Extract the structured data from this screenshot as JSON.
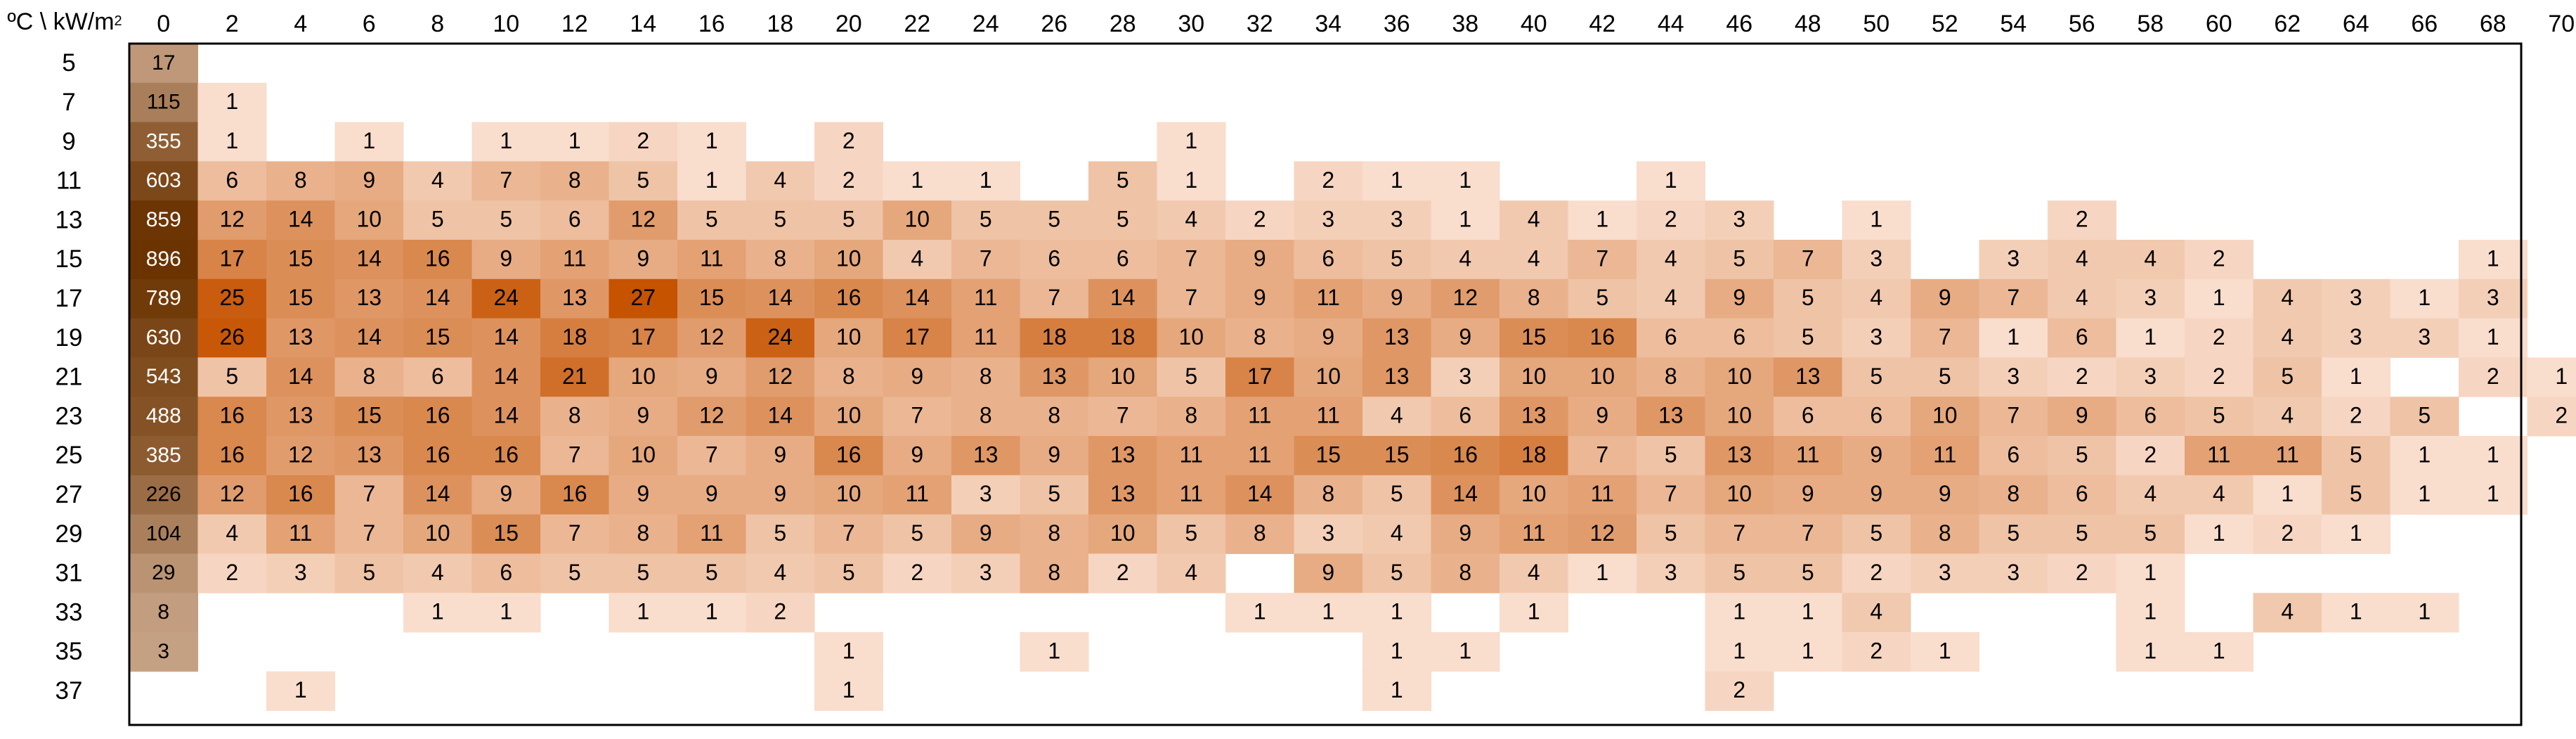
{
  "corner_label": {
    "prefix": "ºC \\ kW/m",
    "sup": "2"
  },
  "colors": {
    "low": "#FCE6DA",
    "high": "#C65300",
    "baseline_low": "#CBA88C",
    "baseline_high": "#6B3300"
  },
  "chart_data": {
    "type": "heatmap",
    "title": "",
    "xlabel": "kW/m2",
    "ylabel": "ºC",
    "x": [
      0,
      2,
      4,
      6,
      8,
      10,
      12,
      14,
      16,
      18,
      20,
      22,
      24,
      26,
      28,
      30,
      32,
      34,
      36,
      38,
      40,
      42,
      44,
      46,
      48,
      50,
      52,
      54,
      56,
      58,
      60,
      62,
      64,
      66,
      68,
      70
    ],
    "y": [
      5,
      7,
      9,
      11,
      13,
      15,
      17,
      19,
      21,
      23,
      25,
      27,
      29,
      31,
      33,
      35,
      37
    ],
    "values": [
      [
        17,
        null,
        null,
        null,
        null,
        null,
        null,
        null,
        null,
        null,
        null,
        null,
        null,
        null,
        null,
        null,
        null,
        null,
        null,
        null,
        null,
        null,
        null,
        null,
        null,
        null,
        null,
        null,
        null,
        null,
        null,
        null,
        null,
        null,
        null,
        null
      ],
      [
        115,
        1,
        null,
        null,
        null,
        null,
        null,
        null,
        null,
        null,
        null,
        null,
        null,
        null,
        null,
        null,
        null,
        null,
        null,
        null,
        null,
        null,
        null,
        null,
        null,
        null,
        null,
        null,
        null,
        null,
        null,
        null,
        null,
        null,
        null,
        null
      ],
      [
        355,
        1,
        null,
        1,
        null,
        1,
        1,
        2,
        1,
        null,
        2,
        null,
        null,
        null,
        null,
        1,
        null,
        null,
        null,
        null,
        null,
        null,
        null,
        null,
        null,
        null,
        null,
        null,
        null,
        null,
        null,
        null,
        null,
        null,
        null,
        null
      ],
      [
        603,
        6,
        8,
        9,
        4,
        7,
        8,
        5,
        1,
        4,
        2,
        1,
        1,
        null,
        5,
        1,
        null,
        2,
        1,
        1,
        null,
        null,
        1,
        null,
        null,
        null,
        null,
        null,
        null,
        null,
        null,
        null,
        null,
        null,
        null,
        null
      ],
      [
        859,
        12,
        14,
        10,
        5,
        5,
        6,
        12,
        5,
        5,
        5,
        10,
        5,
        5,
        5,
        4,
        2,
        3,
        3,
        1,
        4,
        1,
        2,
        3,
        null,
        1,
        null,
        null,
        2,
        null,
        null,
        null,
        null,
        null,
        null,
        null
      ],
      [
        896,
        17,
        15,
        14,
        16,
        9,
        11,
        9,
        11,
        8,
        10,
        4,
        7,
        6,
        6,
        7,
        9,
        6,
        5,
        4,
        4,
        7,
        4,
        5,
        7,
        3,
        null,
        3,
        4,
        4,
        2,
        null,
        null,
        null,
        1,
        null
      ],
      [
        789,
        25,
        15,
        13,
        14,
        24,
        13,
        27,
        15,
        14,
        16,
        14,
        11,
        7,
        14,
        7,
        9,
        11,
        9,
        12,
        8,
        5,
        4,
        9,
        5,
        4,
        9,
        7,
        4,
        3,
        1,
        4,
        3,
        1,
        3,
        null
      ],
      [
        630,
        26,
        13,
        14,
        15,
        14,
        18,
        17,
        12,
        24,
        10,
        17,
        11,
        18,
        18,
        10,
        8,
        9,
        13,
        9,
        15,
        16,
        6,
        6,
        5,
        3,
        7,
        1,
        6,
        1,
        2,
        4,
        3,
        3,
        1,
        null
      ],
      [
        543,
        5,
        14,
        8,
        6,
        14,
        21,
        10,
        9,
        12,
        8,
        9,
        8,
        13,
        10,
        5,
        17,
        10,
        13,
        3,
        10,
        10,
        8,
        10,
        13,
        5,
        5,
        3,
        2,
        3,
        2,
        5,
        1,
        null,
        2,
        1
      ],
      [
        488,
        16,
        13,
        15,
        16,
        14,
        8,
        9,
        12,
        14,
        10,
        7,
        8,
        8,
        7,
        8,
        11,
        11,
        4,
        6,
        13,
        9,
        13,
        10,
        6,
        6,
        10,
        7,
        9,
        6,
        5,
        4,
        2,
        5,
        null,
        2
      ],
      [
        385,
        16,
        12,
        13,
        16,
        16,
        7,
        10,
        7,
        9,
        16,
        9,
        13,
        9,
        13,
        11,
        11,
        15,
        15,
        16,
        18,
        7,
        5,
        13,
        11,
        9,
        11,
        6,
        5,
        2,
        11,
        11,
        5,
        1,
        1,
        null
      ],
      [
        226,
        12,
        16,
        7,
        14,
        9,
        16,
        9,
        9,
        9,
        10,
        11,
        3,
        5,
        13,
        11,
        14,
        8,
        5,
        14,
        10,
        11,
        7,
        10,
        9,
        9,
        9,
        8,
        6,
        4,
        4,
        1,
        5,
        1,
        1,
        null
      ],
      [
        104,
        4,
        11,
        7,
        10,
        15,
        7,
        8,
        11,
        5,
        7,
        5,
        9,
        8,
        10,
        5,
        8,
        3,
        4,
        9,
        11,
        12,
        5,
        7,
        7,
        5,
        8,
        5,
        5,
        5,
        1,
        2,
        1,
        null,
        null,
        null
      ],
      [
        29,
        2,
        3,
        5,
        4,
        6,
        5,
        5,
        5,
        4,
        5,
        2,
        3,
        8,
        2,
        4,
        null,
        9,
        5,
        8,
        4,
        1,
        3,
        5,
        5,
        2,
        3,
        3,
        2,
        1,
        null,
        null,
        null,
        null,
        null,
        null
      ],
      [
        8,
        null,
        null,
        null,
        1,
        1,
        null,
        1,
        1,
        2,
        null,
        null,
        null,
        null,
        null,
        null,
        1,
        1,
        1,
        null,
        1,
        null,
        null,
        1,
        1,
        4,
        null,
        null,
        null,
        1,
        null,
        4,
        1,
        1,
        null,
        null
      ],
      [
        3,
        null,
        null,
        null,
        null,
        null,
        null,
        null,
        null,
        null,
        1,
        null,
        null,
        1,
        null,
        null,
        null,
        null,
        1,
        1,
        null,
        null,
        null,
        1,
        1,
        2,
        1,
        null,
        null,
        1,
        1,
        null,
        null,
        null,
        null,
        null
      ],
      [
        null,
        null,
        1,
        null,
        null,
        null,
        null,
        null,
        null,
        null,
        1,
        null,
        null,
        null,
        null,
        null,
        null,
        null,
        1,
        null,
        null,
        null,
        null,
        2,
        null,
        null,
        null,
        null,
        null,
        null,
        null,
        null,
        null,
        null,
        null,
        null
      ]
    ]
  }
}
